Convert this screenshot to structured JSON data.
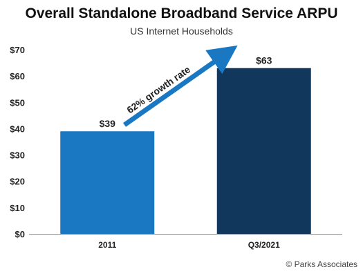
{
  "chart_data": {
    "type": "bar",
    "title": "Overall Standalone Broadband Service ARPU",
    "subtitle": "US Internet Households",
    "categories": [
      "2011",
      "Q3/2021"
    ],
    "values": [
      39,
      63
    ],
    "value_labels": [
      "$39",
      "$63"
    ],
    "colors": [
      "#1a78c2",
      "#12375d"
    ],
    "ylim": [
      0,
      70
    ],
    "yticks": [
      0,
      10,
      20,
      30,
      40,
      50,
      60,
      70
    ],
    "ytick_labels": [
      "$0",
      "$10",
      "$20",
      "$30",
      "$40",
      "$50",
      "$60",
      "$70"
    ],
    "grid": false,
    "annotation": {
      "text": "62% growth rate",
      "arrow_color": "#1a78c2"
    }
  },
  "credit": "© Parks Associates"
}
